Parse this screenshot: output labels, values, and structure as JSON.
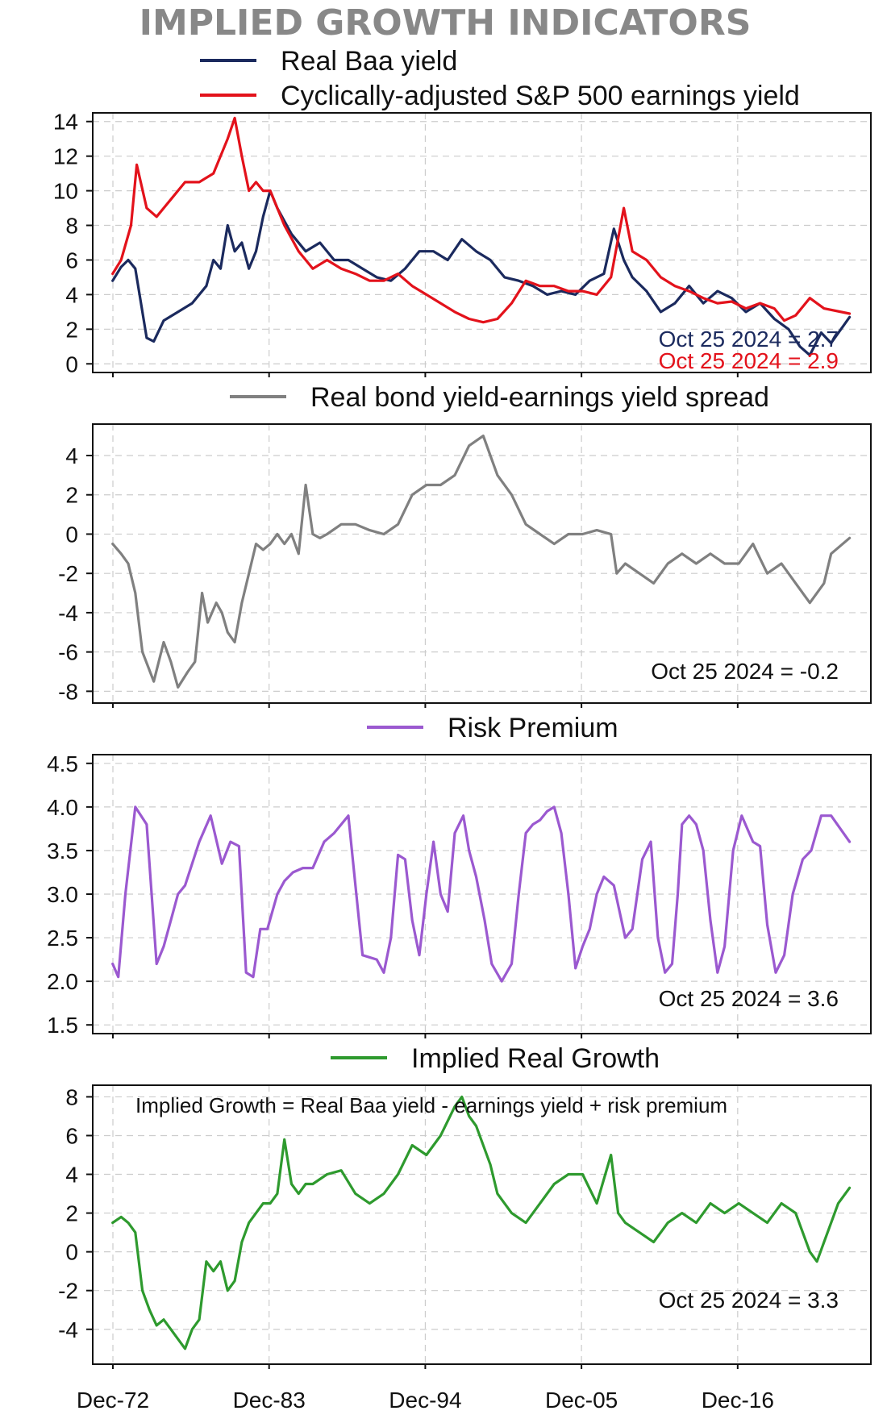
{
  "title": "IMPLIED GROWTH INDICATORS",
  "x_tick_labels": [
    "Dec-72",
    "Dec-83",
    "Dec-94",
    "Dec-05",
    "Dec-16"
  ],
  "colors": {
    "real_baa": "#1b2a5e",
    "earnings_yield": "#e3121b",
    "spread": "#808080",
    "risk_premium": "#9b59d0",
    "growth": "#2e9a2e",
    "title": "#888888"
  },
  "chart_data": [
    {
      "type": "line",
      "series": [
        {
          "name": "Real Baa yield",
          "x": [
            1972.9,
            1973.5,
            1974.0,
            1974.5,
            1975.3,
            1975.8,
            1976.5,
            1977.5,
            1978.5,
            1979.5,
            1980.0,
            1980.5,
            1981.0,
            1981.5,
            1982.0,
            1982.5,
            1983.0,
            1983.5,
            1984.0,
            1984.5,
            1985.5,
            1986.5,
            1987.5,
            1988.5,
            1989.5,
            1990.5,
            1991.5,
            1992.5,
            1993.5,
            1994.5,
            1995.5,
            1996.5,
            1997.5,
            1998.5,
            1999.5,
            2000.5,
            2001.5,
            2002.5,
            2003.5,
            2004.5,
            2005.5,
            2006.5,
            2007.5,
            2008.2,
            2008.9,
            2009.5,
            2010.5,
            2011.5,
            2012.5,
            2013.5,
            2014.5,
            2015.5,
            2016.5,
            2017.5,
            2018.5,
            2019.5,
            2020.5,
            2021.3,
            2022.0,
            2022.8,
            2023.5,
            2024.8
          ],
          "y": [
            4.8,
            5.6,
            6.0,
            5.5,
            1.5,
            1.3,
            2.5,
            3.0,
            3.5,
            4.5,
            6.0,
            5.5,
            8.0,
            6.5,
            7.0,
            5.5,
            6.5,
            8.5,
            10.0,
            9.0,
            7.5,
            6.5,
            7.0,
            6.0,
            6.0,
            5.5,
            5.0,
            4.8,
            5.5,
            6.5,
            6.5,
            6.0,
            7.2,
            6.5,
            6.0,
            5.0,
            4.8,
            4.5,
            4.0,
            4.2,
            4.0,
            4.8,
            5.2,
            7.8,
            6.0,
            5.0,
            4.2,
            3.0,
            3.5,
            4.5,
            3.5,
            4.2,
            3.8,
            3.0,
            3.5,
            2.6,
            2.0,
            1.0,
            0.5,
            1.8,
            1.2,
            2.7
          ]
        },
        {
          "name": "Cyclically-adjusted S&P 500 earnings yield",
          "x": [
            1972.9,
            1973.5,
            1974.2,
            1974.6,
            1975.3,
            1976.0,
            1977.0,
            1978.0,
            1979.0,
            1980.0,
            1981.0,
            1981.5,
            1982.0,
            1982.5,
            1983.0,
            1983.5,
            1984.0,
            1985.0,
            1986.0,
            1987.0,
            1988.0,
            1989.0,
            1990.0,
            1991.0,
            1992.0,
            1993.0,
            1994.0,
            1995.0,
            1996.0,
            1997.0,
            1998.0,
            1999.0,
            2000.0,
            2001.0,
            2002.0,
            2003.0,
            2004.0,
            2005.0,
            2006.0,
            2007.0,
            2008.0,
            2008.9,
            2009.5,
            2010.5,
            2011.5,
            2012.5,
            2013.5,
            2014.5,
            2015.5,
            2016.5,
            2017.5,
            2018.5,
            2019.5,
            2020.2,
            2021.0,
            2022.0,
            2023.0,
            2024.8
          ],
          "y": [
            5.2,
            6.0,
            8.0,
            11.5,
            9.0,
            8.5,
            9.5,
            10.5,
            10.5,
            11.0,
            13.0,
            14.2,
            12.0,
            10.0,
            10.5,
            10.0,
            10.0,
            8.0,
            6.5,
            5.5,
            6.0,
            5.5,
            5.2,
            4.8,
            4.8,
            5.2,
            4.5,
            4.0,
            3.5,
            3.0,
            2.6,
            2.4,
            2.6,
            3.5,
            4.8,
            4.5,
            4.5,
            4.2,
            4.2,
            4.0,
            5.0,
            9.0,
            6.5,
            6.0,
            5.0,
            4.5,
            4.2,
            3.8,
            3.5,
            3.6,
            3.2,
            3.5,
            3.2,
            2.5,
            2.8,
            3.8,
            3.2,
            2.9
          ]
        }
      ],
      "xlim": [
        1971.5,
        2026.3
      ],
      "ylim": [
        -0.5,
        14.5
      ],
      "yticks": [
        0,
        2,
        4,
        6,
        8,
        10,
        12,
        14
      ],
      "grid": true,
      "legend": "top",
      "annotations": [
        "Oct 25 2024 = 2.7",
        "Oct 25 2024 = 2.9"
      ]
    },
    {
      "type": "line",
      "series": [
        {
          "name": "Real bond yield-earnings yield spread",
          "x": [
            1972.9,
            1973.5,
            1974.0,
            1974.5,
            1975.0,
            1975.8,
            1976.5,
            1977.0,
            1977.5,
            1978.2,
            1978.7,
            1979.2,
            1979.6,
            1980.2,
            1980.6,
            1981.0,
            1981.5,
            1982.0,
            1982.5,
            1983.0,
            1983.5,
            1984.0,
            1984.5,
            1985.0,
            1985.5,
            1986.0,
            1986.5,
            1987.0,
            1987.5,
            1988.0,
            1989.0,
            1990.0,
            1991.0,
            1992.0,
            1993.0,
            1994.0,
            1995.0,
            1996.0,
            1997.0,
            1998.0,
            1999.0,
            2000.0,
            2001.0,
            2002.0,
            2003.0,
            2004.0,
            2005.0,
            2006.0,
            2007.0,
            2008.0,
            2008.4,
            2009.0,
            2010.0,
            2011.0,
            2012.0,
            2013.0,
            2014.0,
            2015.0,
            2016.0,
            2017.0,
            2018.0,
            2019.0,
            2020.0,
            2021.0,
            2022.0,
            2023.0,
            2023.5,
            2024.8
          ],
          "y": [
            -0.5,
            -1.0,
            -1.5,
            -3.0,
            -6.0,
            -7.5,
            -5.5,
            -6.5,
            -7.8,
            -7.0,
            -6.5,
            -3.0,
            -4.5,
            -3.5,
            -4.0,
            -5.0,
            -5.5,
            -3.5,
            -2.0,
            -0.5,
            -0.8,
            -0.5,
            0.0,
            -0.5,
            0.0,
            -1.0,
            2.5,
            0.0,
            -0.2,
            0.0,
            0.5,
            0.5,
            0.2,
            0.0,
            0.5,
            2.0,
            2.5,
            2.5,
            3.0,
            4.5,
            5.0,
            3.0,
            2.0,
            0.5,
            0.0,
            -0.5,
            0.0,
            0.0,
            0.2,
            0.0,
            -2.0,
            -1.5,
            -2.0,
            -2.5,
            -1.5,
            -1.0,
            -1.5,
            -1.0,
            -1.5,
            -1.5,
            -0.5,
            -2.0,
            -1.5,
            -2.5,
            -3.5,
            -2.5,
            -1.0,
            -0.2
          ]
        }
      ],
      "xlim": [
        1971.5,
        2026.3
      ],
      "ylim": [
        -8.6,
        5.6
      ],
      "yticks": [
        -8,
        -6,
        -4,
        -2,
        0,
        2,
        4
      ],
      "grid": true,
      "legend": "top",
      "annotations": [
        "Oct 25 2024 = -0.2"
      ]
    },
    {
      "type": "line",
      "series": [
        {
          "name": "Risk Premium",
          "x": [
            1972.9,
            1973.3,
            1973.8,
            1974.5,
            1975.3,
            1976.0,
            1976.5,
            1977.0,
            1977.5,
            1978.0,
            1979.0,
            1979.8,
            1980.6,
            1981.2,
            1981.8,
            1982.3,
            1982.8,
            1983.3,
            1983.8,
            1984.5,
            1985.0,
            1985.6,
            1986.3,
            1987.0,
            1987.8,
            1988.5,
            1989.5,
            1990.5,
            1991.5,
            1992.0,
            1992.5,
            1993.0,
            1993.5,
            1994.0,
            1994.5,
            1995.0,
            1995.5,
            1996.0,
            1996.5,
            1997.0,
            1997.6,
            1998.0,
            1998.5,
            1999.1,
            1999.6,
            2000.3,
            2001.0,
            2001.5,
            2002.0,
            2002.5,
            2003.0,
            2003.5,
            2004.0,
            2004.5,
            2005.0,
            2005.5,
            2006.0,
            2006.5,
            2007.0,
            2007.5,
            2008.2,
            2009.0,
            2009.5,
            2010.2,
            2010.8,
            2011.3,
            2011.8,
            2012.3,
            2012.7,
            2013.0,
            2013.5,
            2014.0,
            2014.5,
            2015.0,
            2015.5,
            2016.0,
            2016.6,
            2017.2,
            2018.0,
            2018.5,
            2019.0,
            2019.6,
            2020.2,
            2020.8,
            2021.5,
            2022.1,
            2022.8,
            2023.5,
            2024.8
          ],
          "y": [
            2.2,
            2.05,
            3.0,
            4.0,
            3.8,
            2.2,
            2.4,
            2.7,
            3.0,
            3.1,
            3.6,
            3.9,
            3.35,
            3.6,
            3.55,
            2.1,
            2.05,
            2.6,
            2.6,
            3.0,
            3.15,
            3.25,
            3.3,
            3.3,
            3.6,
            3.7,
            3.9,
            2.3,
            2.25,
            2.1,
            2.5,
            3.45,
            3.4,
            2.7,
            2.3,
            3.0,
            3.6,
            3.0,
            2.8,
            3.7,
            3.9,
            3.5,
            3.2,
            2.7,
            2.2,
            2.0,
            2.2,
            3.0,
            3.7,
            3.8,
            3.85,
            3.95,
            4.0,
            3.7,
            3.0,
            2.15,
            2.4,
            2.6,
            3.0,
            3.2,
            3.1,
            2.5,
            2.6,
            3.4,
            3.6,
            2.5,
            2.1,
            2.2,
            3.0,
            3.8,
            3.9,
            3.8,
            3.5,
            2.7,
            2.1,
            2.4,
            3.5,
            3.9,
            3.6,
            3.55,
            2.65,
            2.1,
            2.3,
            3.0,
            3.4,
            3.5,
            3.9,
            3.9,
            3.6
          ]
        }
      ],
      "xlim": [
        1971.5,
        2026.3
      ],
      "ylim": [
        1.4,
        4.6
      ],
      "yticks": [
        1.5,
        2.0,
        2.5,
        3.0,
        3.5,
        4.0,
        4.5
      ],
      "grid": true,
      "legend": "top",
      "annotations": [
        "Oct 25 2024 = 3.6"
      ]
    },
    {
      "type": "line",
      "series": [
        {
          "name": "Implied Real Growth",
          "x": [
            1972.9,
            1973.5,
            1974.0,
            1974.5,
            1975.0,
            1975.5,
            1976.0,
            1976.5,
            1977.0,
            1977.5,
            1978.0,
            1978.5,
            1979.0,
            1979.5,
            1980.0,
            1980.5,
            1981.0,
            1981.5,
            1982.0,
            1982.5,
            1983.0,
            1983.5,
            1984.0,
            1984.5,
            1985.0,
            1985.5,
            1986.0,
            1986.5,
            1987.0,
            1988.0,
            1989.0,
            1990.0,
            1991.0,
            1992.0,
            1993.0,
            1994.0,
            1995.0,
            1996.0,
            1997.0,
            1997.5,
            1998.0,
            1998.5,
            1999.0,
            1999.5,
            2000.0,
            2001.0,
            2002.0,
            2003.0,
            2004.0,
            2005.0,
            2006.0,
            2007.0,
            2008.0,
            2008.5,
            2009.0,
            2010.0,
            2011.0,
            2012.0,
            2013.0,
            2014.0,
            2015.0,
            2016.0,
            2017.0,
            2018.0,
            2019.0,
            2020.0,
            2021.0,
            2022.0,
            2022.5,
            2023.0,
            2024.0,
            2024.8
          ],
          "y": [
            1.5,
            1.8,
            1.5,
            1.0,
            -2.0,
            -3.0,
            -3.8,
            -3.5,
            -4.0,
            -4.5,
            -5.0,
            -4.0,
            -3.5,
            -0.5,
            -1.0,
            -0.5,
            -2.0,
            -1.5,
            0.5,
            1.5,
            2.0,
            2.5,
            2.5,
            3.0,
            5.8,
            3.5,
            3.0,
            3.5,
            3.5,
            4.0,
            4.2,
            3.0,
            2.5,
            3.0,
            4.0,
            5.5,
            5.0,
            6.0,
            7.5,
            8.0,
            7.0,
            6.5,
            5.5,
            4.5,
            3.0,
            2.0,
            1.5,
            2.5,
            3.5,
            4.0,
            4.0,
            2.5,
            5.0,
            2.0,
            1.5,
            1.0,
            0.5,
            1.5,
            2.0,
            1.5,
            2.5,
            2.0,
            2.5,
            2.0,
            1.5,
            2.5,
            2.0,
            0.0,
            -0.5,
            0.5,
            2.5,
            3.3
          ]
        }
      ],
      "xlim": [
        1971.5,
        2026.3
      ],
      "ylim": [
        -5.8,
        8.6
      ],
      "yticks": [
        -4,
        -2,
        0,
        2,
        4,
        6,
        8
      ],
      "grid": true,
      "legend": "top",
      "annotations": [
        "Implied Growth = Real Baa yield - earnings yield + risk premium",
        "Oct 25 2024 = 3.3"
      ]
    }
  ]
}
